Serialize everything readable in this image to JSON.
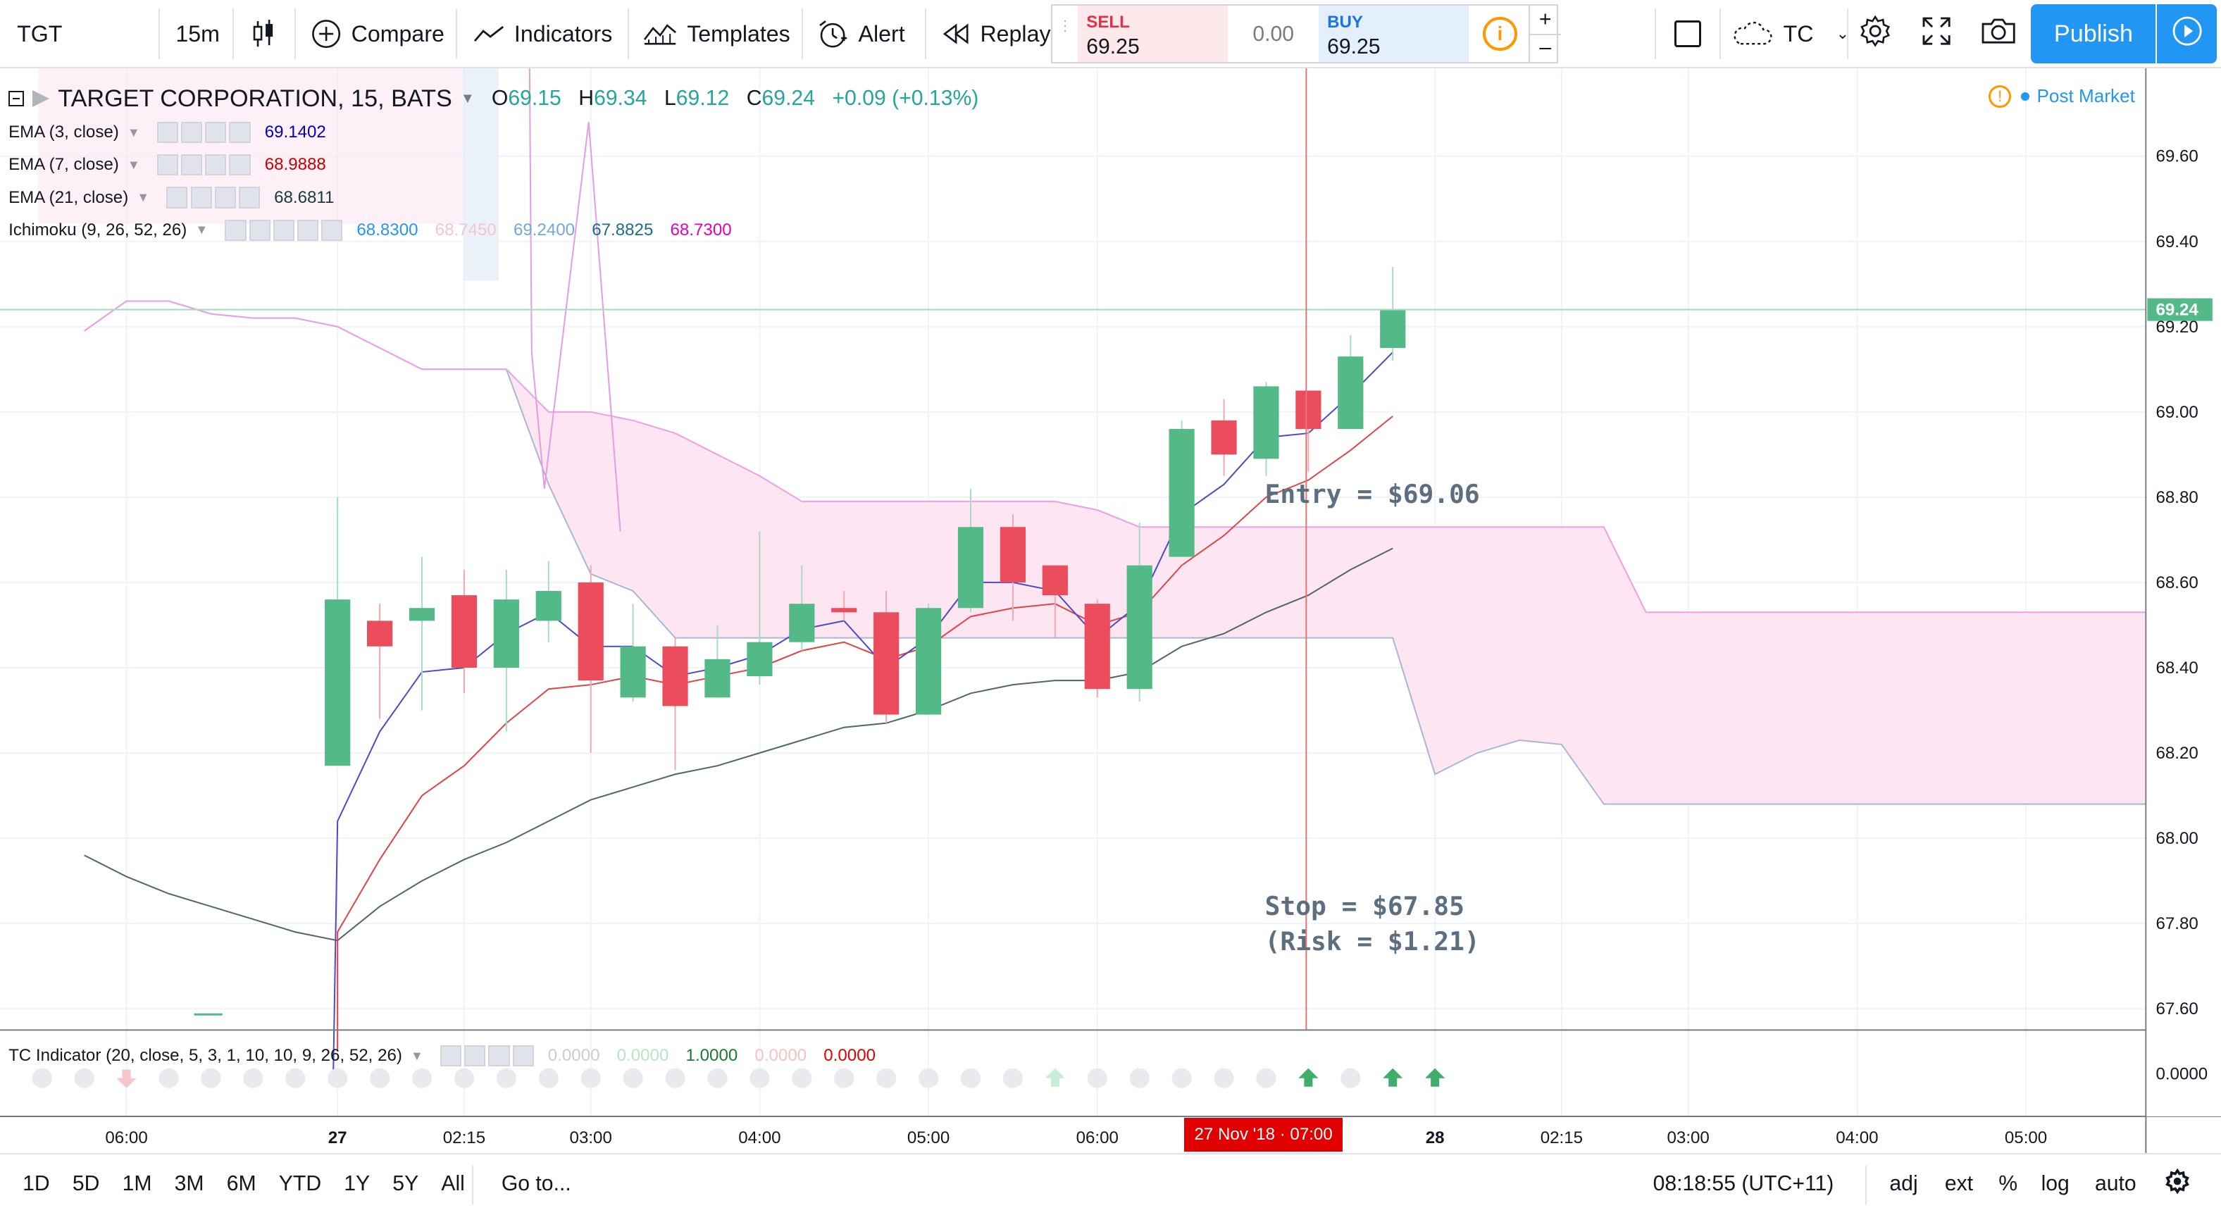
{
  "toolbar": {
    "symbol": "TGT",
    "interval": "15m",
    "compare_label": "Compare",
    "indicators_label": "Indicators",
    "templates_label": "Templates",
    "alert_label": "Alert",
    "replay_label": "Replay",
    "sell_label": "SELL",
    "sell_price": "69.25",
    "spread": "0.00",
    "buy_label": "BUY",
    "buy_price": "69.25",
    "qty_plus": "+",
    "qty_minus": "–",
    "layout_name": "TC",
    "publish_label": "Publish"
  },
  "legend": {
    "title": "TARGET CORPORATION, 15, BATS",
    "open_label": "O",
    "open": "69.15",
    "high_label": "H",
    "high": "69.34",
    "low_label": "L",
    "low": "69.12",
    "close_label": "C",
    "close": "69.24",
    "change": "+0.09 (+0.13%)",
    "post_market": "Post Market",
    "studies": [
      {
        "name": "EMA (3, close)",
        "values": [
          {
            "v": "69.1402",
            "color": "#0000cc"
          }
        ]
      },
      {
        "name": "EMA (7, close)",
        "values": [
          {
            "v": "68.9888",
            "color": "#cc0000"
          }
        ]
      },
      {
        "name": "EMA (21, close)",
        "values": [
          {
            "v": "68.6811",
            "color": "#163a3a"
          }
        ]
      },
      {
        "name": "Ichimoku (9, 26, 52, 26)",
        "values": [
          {
            "v": "68.8300",
            "color": "#2196f3"
          },
          {
            "v": "68.7450",
            "color": "#f0c8c8"
          },
          {
            "v": "69.2400",
            "color": "#6fa8dc"
          },
          {
            "v": "67.8825",
            "color": "#1e6b8a"
          },
          {
            "v": "68.7300",
            "color": "#e600b8"
          }
        ]
      }
    ]
  },
  "tc_indicator": {
    "name": "TC Indicator (20, close, 5, 3, 1, 10, 10, 9, 26, 52, 26)",
    "values": [
      {
        "v": "0.0000",
        "color": "#c9ccd2"
      },
      {
        "v": "0.0000",
        "color": "#b7e4c7"
      },
      {
        "v": "1.0000",
        "color": "#1b7a34"
      },
      {
        "v": "0.0000",
        "color": "#f4c2c2"
      },
      {
        "v": "0.0000",
        "color": "#e00000"
      }
    ],
    "axis_label": "0.0000"
  },
  "annotations": {
    "entry": "Entry = $69.06",
    "stop": "Stop = $67.85",
    "risk": "(Risk = $1.21)",
    "cursor_time": "27 Nov '18 · 07:00"
  },
  "bottombar": {
    "ranges": [
      "1D",
      "5D",
      "1M",
      "3M",
      "6M",
      "YTD",
      "1Y",
      "5Y",
      "All"
    ],
    "goto": "Go to...",
    "clock": "08:18:55 (UTC+11)",
    "adj": "adj",
    "ext": "ext",
    "pct": "%",
    "log": "log",
    "auto": "auto"
  },
  "colors": {
    "up": "#53b987",
    "down": "#eb4d5c",
    "cloud": "#fde6f2",
    "cloud_edge": "#ee9ee4",
    "ema3": "#4b4bc8",
    "ema7": "#e04545",
    "ema21": "#4f6767",
    "accent": "#2196f3"
  },
  "chart_data": {
    "type": "candlestick",
    "symbol": "TGT",
    "ylim": [
      67.55,
      69.72
    ],
    "y_ticks": [
      "69.60",
      "69.40",
      "69.20",
      "69.00",
      "68.80",
      "68.60",
      "68.40",
      "68.20",
      "68.00",
      "67.80",
      "67.60"
    ],
    "last_price": "69.24",
    "x_ticks": [
      "06:00",
      "27",
      "02:15",
      "03:00",
      "04:00",
      "05:00",
      "06:00",
      "28",
      "02:15",
      "03:00",
      "04:00",
      "05:00"
    ],
    "x_tick_slots": [
      2,
      7,
      10,
      13,
      17,
      21,
      25,
      33,
      36,
      39,
      43,
      47
    ],
    "candles": [
      {
        "slot": 7,
        "o": 68.17,
        "h": 68.8,
        "l": 68.17,
        "c": 68.56
      },
      {
        "slot": 8,
        "o": 68.51,
        "h": 68.55,
        "l": 68.28,
        "c": 68.45
      },
      {
        "slot": 9,
        "o": 68.51,
        "h": 68.66,
        "l": 68.3,
        "c": 68.54
      },
      {
        "slot": 10,
        "o": 68.57,
        "h": 68.63,
        "l": 68.34,
        "c": 68.4
      },
      {
        "slot": 11,
        "o": 68.4,
        "h": 68.63,
        "l": 68.25,
        "c": 68.56
      },
      {
        "slot": 12,
        "o": 68.51,
        "h": 68.65,
        "l": 68.46,
        "c": 68.58
      },
      {
        "slot": 13,
        "o": 68.6,
        "h": 68.64,
        "l": 68.2,
        "c": 68.37
      },
      {
        "slot": 14,
        "o": 68.33,
        "h": 68.55,
        "l": 68.32,
        "c": 68.45
      },
      {
        "slot": 15,
        "o": 68.45,
        "h": 68.47,
        "l": 68.16,
        "c": 68.31
      },
      {
        "slot": 16,
        "o": 68.33,
        "h": 68.5,
        "l": 68.33,
        "c": 68.42
      },
      {
        "slot": 17,
        "o": 68.38,
        "h": 68.72,
        "l": 68.36,
        "c": 68.46
      },
      {
        "slot": 18,
        "o": 68.46,
        "h": 68.64,
        "l": 68.44,
        "c": 68.55
      },
      {
        "slot": 19,
        "o": 68.54,
        "h": 68.58,
        "l": 68.51,
        "c": 68.53
      },
      {
        "slot": 20,
        "o": 68.53,
        "h": 68.58,
        "l": 68.27,
        "c": 68.29
      },
      {
        "slot": 21,
        "o": 68.29,
        "h": 68.55,
        "l": 68.29,
        "c": 68.54
      },
      {
        "slot": 22,
        "o": 68.54,
        "h": 68.82,
        "l": 68.53,
        "c": 68.73
      },
      {
        "slot": 23,
        "o": 68.73,
        "h": 68.76,
        "l": 68.51,
        "c": 68.6
      },
      {
        "slot": 24,
        "o": 68.64,
        "h": 68.64,
        "l": 68.47,
        "c": 68.57
      },
      {
        "slot": 25,
        "o": 68.55,
        "h": 68.56,
        "l": 68.33,
        "c": 68.35
      },
      {
        "slot": 26,
        "o": 68.35,
        "h": 68.74,
        "l": 68.32,
        "c": 68.64
      },
      {
        "slot": 27,
        "o": 68.66,
        "h": 68.98,
        "l": 68.66,
        "c": 68.96
      },
      {
        "slot": 28,
        "o": 68.98,
        "h": 69.03,
        "l": 68.85,
        "c": 68.9
      },
      {
        "slot": 29,
        "o": 68.89,
        "h": 69.07,
        "l": 68.85,
        "c": 69.06
      },
      {
        "slot": 30,
        "o": 69.05,
        "h": 69.05,
        "l": 68.86,
        "c": 68.96
      },
      {
        "slot": 31,
        "o": 68.96,
        "h": 69.18,
        "l": 68.96,
        "c": 69.13
      },
      {
        "slot": 32,
        "o": 69.15,
        "h": 69.34,
        "l": 69.12,
        "c": 69.24
      }
    ],
    "ema3": [
      [
        7,
        68.04
      ],
      [
        8,
        68.25
      ],
      [
        9,
        68.39
      ],
      [
        10,
        68.4
      ],
      [
        11,
        68.48
      ],
      [
        12,
        68.53
      ],
      [
        13,
        68.45
      ],
      [
        14,
        68.45
      ],
      [
        15,
        68.38
      ],
      [
        16,
        68.4
      ],
      [
        17,
        68.43
      ],
      [
        18,
        68.49
      ],
      [
        19,
        68.51
      ],
      [
        20,
        68.4
      ],
      [
        21,
        68.47
      ],
      [
        22,
        68.6
      ],
      [
        23,
        68.6
      ],
      [
        24,
        68.58
      ],
      [
        25,
        68.47
      ],
      [
        26,
        68.55
      ],
      [
        27,
        68.76
      ],
      [
        28,
        68.83
      ],
      [
        29,
        68.94
      ],
      [
        30,
        68.95
      ],
      [
        31,
        69.04
      ],
      [
        32,
        69.14
      ]
    ],
    "ema7": [
      [
        7,
        67.78
      ],
      [
        8,
        67.95
      ],
      [
        9,
        68.1
      ],
      [
        10,
        68.17
      ],
      [
        11,
        68.27
      ],
      [
        12,
        68.35
      ],
      [
        13,
        68.36
      ],
      [
        14,
        68.38
      ],
      [
        15,
        68.36
      ],
      [
        16,
        68.38
      ],
      [
        17,
        68.4
      ],
      [
        18,
        68.44
      ],
      [
        19,
        68.46
      ],
      [
        20,
        68.42
      ],
      [
        21,
        68.45
      ],
      [
        22,
        68.52
      ],
      [
        23,
        68.54
      ],
      [
        24,
        68.55
      ],
      [
        25,
        68.5
      ],
      [
        26,
        68.53
      ],
      [
        27,
        68.64
      ],
      [
        28,
        68.71
      ],
      [
        29,
        68.8
      ],
      [
        30,
        68.84
      ],
      [
        31,
        68.91
      ],
      [
        32,
        68.99
      ]
    ],
    "ema21": [
      [
        1,
        67.96
      ],
      [
        2,
        67.91
      ],
      [
        3,
        67.87
      ],
      [
        4,
        67.84
      ],
      [
        5,
        67.81
      ],
      [
        6,
        67.78
      ],
      [
        7,
        67.76
      ],
      [
        8,
        67.84
      ],
      [
        9,
        67.9
      ],
      [
        10,
        67.95
      ],
      [
        11,
        67.99
      ],
      [
        12,
        68.04
      ],
      [
        13,
        68.09
      ],
      [
        14,
        68.12
      ],
      [
        15,
        68.15
      ],
      [
        16,
        68.17
      ],
      [
        17,
        68.2
      ],
      [
        18,
        68.23
      ],
      [
        19,
        68.26
      ],
      [
        20,
        68.27
      ],
      [
        21,
        68.3
      ],
      [
        22,
        68.34
      ],
      [
        23,
        68.36
      ],
      [
        24,
        68.37
      ],
      [
        25,
        68.37
      ],
      [
        26,
        68.39
      ],
      [
        27,
        68.45
      ],
      [
        28,
        68.48
      ],
      [
        29,
        68.53
      ],
      [
        30,
        68.57
      ],
      [
        31,
        68.63
      ],
      [
        32,
        68.68
      ]
    ],
    "cloud_upper": [
      [
        1,
        69.19
      ],
      [
        2,
        69.26
      ],
      [
        3,
        69.26
      ],
      [
        4,
        69.23
      ],
      [
        5,
        69.22
      ],
      [
        6,
        69.22
      ],
      [
        7,
        69.2
      ],
      [
        8,
        69.15
      ],
      [
        9,
        69.1
      ],
      [
        10,
        69.1
      ],
      [
        11,
        69.1
      ],
      [
        12,
        68.83
      ],
      [
        13,
        68.62
      ],
      [
        14,
        68.58
      ],
      [
        15,
        68.47
      ],
      [
        16,
        68.47
      ],
      [
        17,
        68.47
      ],
      [
        18,
        68.47
      ],
      [
        19,
        68.47
      ],
      [
        20,
        68.47
      ],
      [
        21,
        68.47
      ],
      [
        22,
        68.47
      ],
      [
        23,
        68.47
      ],
      [
        24,
        68.47
      ],
      [
        25,
        68.47
      ],
      [
        26,
        68.47
      ],
      [
        27,
        68.47
      ],
      [
        28,
        68.47
      ],
      [
        29,
        68.47
      ],
      [
        30,
        68.47
      ],
      [
        31,
        68.47
      ],
      [
        32,
        68.47
      ],
      [
        33,
        68.15
      ],
      [
        34,
        68.2
      ],
      [
        35,
        68.23
      ],
      [
        36,
        68.22
      ],
      [
        37,
        68.08
      ],
      [
        38,
        68.08
      ],
      [
        39,
        68.08
      ],
      [
        40,
        68.08
      ],
      [
        41,
        68.08
      ],
      [
        42,
        68.08
      ],
      [
        43,
        68.08
      ],
      [
        44,
        68.08
      ],
      [
        45,
        68.08
      ],
      [
        46,
        68.08
      ],
      [
        47,
        68.08
      ],
      [
        48,
        68.08
      ],
      [
        49,
        68.08
      ],
      [
        50,
        68.08
      ],
      [
        51,
        68.08
      ]
    ],
    "cloud_lower": [
      [
        1,
        69.19
      ],
      [
        2,
        69.26
      ],
      [
        3,
        69.26
      ],
      [
        4,
        69.23
      ],
      [
        5,
        69.22
      ],
      [
        6,
        69.22
      ],
      [
        7,
        69.2
      ],
      [
        8,
        69.15
      ],
      [
        9,
        69.1
      ],
      [
        10,
        69.1
      ],
      [
        11,
        69.1
      ],
      [
        12,
        69.0
      ],
      [
        13,
        69.0
      ],
      [
        14,
        68.98
      ],
      [
        15,
        68.95
      ],
      [
        16,
        68.9
      ],
      [
        17,
        68.85
      ],
      [
        18,
        68.79
      ],
      [
        19,
        68.79
      ],
      [
        20,
        68.79
      ],
      [
        21,
        68.79
      ],
      [
        22,
        68.79
      ],
      [
        23,
        68.79
      ],
      [
        24,
        68.79
      ],
      [
        25,
        68.77
      ],
      [
        26,
        68.73
      ],
      [
        27,
        68.73
      ],
      [
        28,
        68.73
      ],
      [
        29,
        68.73
      ],
      [
        30,
        68.73
      ],
      [
        31,
        68.73
      ],
      [
        32,
        68.73
      ],
      [
        33,
        68.73
      ],
      [
        34,
        68.73
      ],
      [
        35,
        68.73
      ],
      [
        36,
        68.73
      ],
      [
        37,
        68.73
      ],
      [
        38,
        68.53
      ],
      [
        39,
        68.53
      ],
      [
        40,
        68.53
      ],
      [
        41,
        68.53
      ],
      [
        42,
        68.53
      ],
      [
        43,
        68.53
      ],
      [
        44,
        68.53
      ],
      [
        45,
        68.53
      ],
      [
        46,
        68.53
      ],
      [
        47,
        68.53
      ],
      [
        48,
        68.53
      ],
      [
        49,
        68.53
      ],
      [
        50,
        68.53
      ],
      [
        51,
        68.49
      ]
    ],
    "signals": {
      "strong_up": [
        30,
        32,
        33
      ],
      "faint_up": [
        24
      ],
      "faint_down": [
        2
      ]
    }
  }
}
